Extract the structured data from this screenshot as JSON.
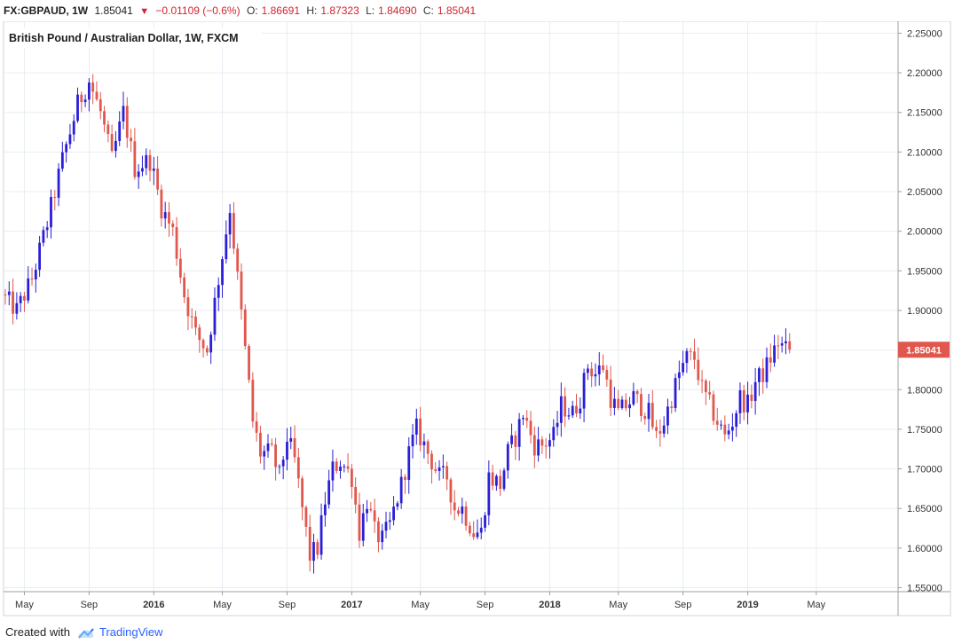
{
  "header": {
    "symbol": "FX:GBPAUD, 1W",
    "last": "1.85041",
    "change": "−0.01109 (−0.6%)",
    "open_label": "O:",
    "open": "1.86691",
    "high_label": "H:",
    "high": "1.87323",
    "low_label": "L:",
    "low": "1.84690",
    "close_label": "C:",
    "close": "1.85041"
  },
  "colors": {
    "up": "#2a1fd6",
    "down": "#e0574d",
    "price_tag": "#e0574d",
    "grid": "#e8edf2",
    "text": "#333333"
  },
  "footer": {
    "created_with": "Created with",
    "brand": "TradingView",
    "logo_icon": "tradingview-cloud-icon"
  },
  "chart_data": {
    "type": "candlestick",
    "title": "British Pound / Australian Dollar, 1W, FXCM",
    "last_price_label": "1.85041",
    "ylim": [
      1.545,
      2.265
    ],
    "y_ticks": [
      "2.25000",
      "2.20000",
      "2.15000",
      "2.10000",
      "2.05000",
      "2.00000",
      "1.95000",
      "1.90000",
      "1.85000",
      "1.80000",
      "1.75000",
      "1.70000",
      "1.65000",
      "1.60000",
      "1.55000"
    ],
    "x_ticks": [
      {
        "label": "May",
        "bold": false,
        "week": 5
      },
      {
        "label": "Sep",
        "bold": false,
        "week": 22
      },
      {
        "label": "2016",
        "bold": true,
        "week": 39
      },
      {
        "label": "May",
        "bold": false,
        "week": 57
      },
      {
        "label": "Sep",
        "bold": false,
        "week": 74
      },
      {
        "label": "2017",
        "bold": true,
        "week": 91
      },
      {
        "label": "May",
        "bold": false,
        "week": 109
      },
      {
        "label": "Sep",
        "bold": false,
        "week": 126
      },
      {
        "label": "2018",
        "bold": true,
        "week": 143
      },
      {
        "label": "May",
        "bold": false,
        "week": 161
      },
      {
        "label": "Sep",
        "bold": false,
        "week": 178
      },
      {
        "label": "2019",
        "bold": true,
        "week": 195
      },
      {
        "label": "May",
        "bold": false,
        "week": 213
      }
    ],
    "grid": true,
    "anchors": [
      [
        0,
        1.92
      ],
      [
        4,
        1.9
      ],
      [
        8,
        1.94
      ],
      [
        12,
        2.01
      ],
      [
        16,
        2.09
      ],
      [
        20,
        2.16
      ],
      [
        23,
        2.19
      ],
      [
        26,
        2.15
      ],
      [
        29,
        2.09
      ],
      [
        32,
        2.15
      ],
      [
        35,
        2.08
      ],
      [
        39,
        2.09
      ],
      [
        42,
        2.03
      ],
      [
        45,
        2.0
      ],
      [
        48,
        1.92
      ],
      [
        51,
        1.87
      ],
      [
        54,
        1.85
      ],
      [
        56,
        1.91
      ],
      [
        58,
        1.97
      ],
      [
        60,
        2.03
      ],
      [
        62,
        1.94
      ],
      [
        64,
        1.85
      ],
      [
        66,
        1.76
      ],
      [
        68,
        1.72
      ],
      [
        71,
        1.72
      ],
      [
        73,
        1.69
      ],
      [
        75,
        1.74
      ],
      [
        77,
        1.71
      ],
      [
        79,
        1.65
      ],
      [
        81,
        1.59
      ],
      [
        83,
        1.6
      ],
      [
        85,
        1.66
      ],
      [
        87,
        1.7
      ],
      [
        89,
        1.71
      ],
      [
        92,
        1.69
      ],
      [
        94,
        1.62
      ],
      [
        96,
        1.66
      ],
      [
        98,
        1.62
      ],
      [
        100,
        1.61
      ],
      [
        102,
        1.63
      ],
      [
        105,
        1.68
      ],
      [
        107,
        1.72
      ],
      [
        109,
        1.75
      ],
      [
        111,
        1.73
      ],
      [
        113,
        1.71
      ],
      [
        115,
        1.69
      ],
      [
        117,
        1.69
      ],
      [
        119,
        1.65
      ],
      [
        121,
        1.65
      ],
      [
        124,
        1.62
      ],
      [
        126,
        1.62
      ],
      [
        128,
        1.69
      ],
      [
        131,
        1.68
      ],
      [
        133,
        1.72
      ],
      [
        135,
        1.74
      ],
      [
        137,
        1.77
      ],
      [
        140,
        1.73
      ],
      [
        142,
        1.73
      ],
      [
        145,
        1.74
      ],
      [
        147,
        1.78
      ],
      [
        150,
        1.77
      ],
      [
        152,
        1.79
      ],
      [
        154,
        1.83
      ],
      [
        156,
        1.82
      ],
      [
        158,
        1.83
      ],
      [
        160,
        1.79
      ],
      [
        162,
        1.77
      ],
      [
        164,
        1.78
      ],
      [
        166,
        1.79
      ],
      [
        168,
        1.78
      ],
      [
        170,
        1.77
      ],
      [
        172,
        1.74
      ],
      [
        174,
        1.76
      ],
      [
        176,
        1.79
      ],
      [
        178,
        1.82
      ],
      [
        180,
        1.84
      ],
      [
        182,
        1.84
      ],
      [
        184,
        1.8
      ],
      [
        186,
        1.78
      ],
      [
        188,
        1.76
      ],
      [
        190,
        1.74
      ],
      [
        192,
        1.76
      ],
      [
        194,
        1.79
      ],
      [
        196,
        1.78
      ],
      [
        198,
        1.81
      ],
      [
        200,
        1.82
      ],
      [
        202,
        1.84
      ],
      [
        204,
        1.86
      ],
      [
        206,
        1.85
      ]
    ]
  }
}
